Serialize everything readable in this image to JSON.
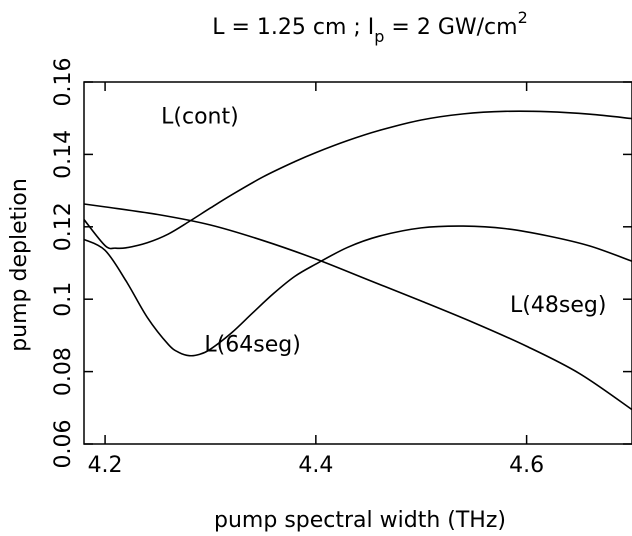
{
  "chart_data": {
    "type": "line",
    "title": {
      "prefix": "L = 1.25 cm ;  I",
      "subscript": "p",
      "middle": " = 2 GW/cm",
      "superscript": "2"
    },
    "xlabel": "pump spectral width (THz)",
    "ylabel": "pump depletion",
    "xlim": [
      4.18,
      4.7
    ],
    "ylim": [
      0.06,
      0.16
    ],
    "xticks": [
      4.2,
      4.4,
      4.6
    ],
    "xtick_labels": [
      "4.2",
      "4.4",
      "4.6"
    ],
    "yticks": [
      0.06,
      0.08,
      0.1,
      0.12,
      0.14,
      0.16
    ],
    "ytick_labels": [
      "0.06",
      "0.08",
      "0.1",
      "0.12",
      "0.14",
      "0.16"
    ],
    "grid": false,
    "legend": "none",
    "series": [
      {
        "name": "L(cont)",
        "label_at": [
          4.29,
          0.1485
        ],
        "x": [
          4.18,
          4.2,
          4.21,
          4.22,
          4.24,
          4.26,
          4.28,
          4.3,
          4.32,
          4.35,
          4.38,
          4.4,
          4.43,
          4.46,
          4.5,
          4.54,
          4.58,
          4.62,
          4.66,
          4.7
        ],
        "y": [
          0.122,
          0.1148,
          0.1141,
          0.1142,
          0.1156,
          0.118,
          0.1215,
          0.1252,
          0.1288,
          0.1338,
          0.138,
          0.1405,
          0.1438,
          0.1466,
          0.1495,
          0.1512,
          0.1519,
          0.1518,
          0.1511,
          0.1499
        ]
      },
      {
        "name": "L(64seg)",
        "label_at": [
          4.34,
          0.0855
        ],
        "x": [
          4.18,
          4.2,
          4.22,
          4.24,
          4.26,
          4.27,
          4.28,
          4.29,
          4.3,
          4.32,
          4.34,
          4.36,
          4.38,
          4.4,
          4.43,
          4.46,
          4.5,
          4.54,
          4.58,
          4.62,
          4.66,
          4.7
        ],
        "y": [
          0.1165,
          0.1135,
          0.105,
          0.095,
          0.0875,
          0.0853,
          0.0844,
          0.0848,
          0.0862,
          0.0907,
          0.0962,
          0.1016,
          0.1063,
          0.1097,
          0.1143,
          0.1174,
          0.1197,
          0.1202,
          0.1195,
          0.1175,
          0.1147,
          0.1105
        ]
      },
      {
        "name": "L(48seg)",
        "label_at": [
          4.63,
          0.0965
        ],
        "x": [
          4.18,
          4.2,
          4.25,
          4.3,
          4.35,
          4.4,
          4.45,
          4.5,
          4.55,
          4.6,
          4.65,
          4.7
        ],
        "y": [
          0.1263,
          0.1255,
          0.1234,
          0.1205,
          0.1162,
          0.1111,
          0.1053,
          0.0995,
          0.0935,
          0.087,
          0.0795,
          0.0695
        ]
      }
    ]
  }
}
